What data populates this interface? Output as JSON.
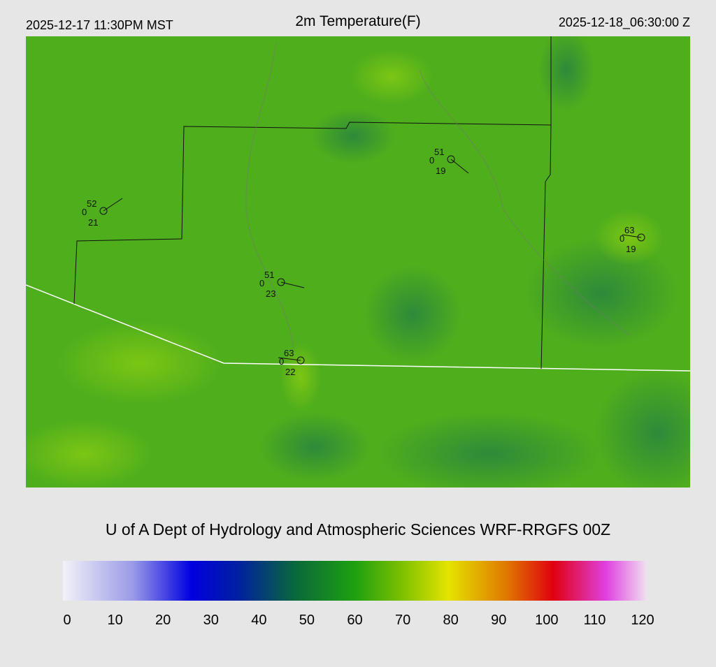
{
  "header": {
    "local_time": "2025-12-17 11:30PM MST",
    "title": "2m Temperature(F)",
    "utc_time": "2025-12-18_06:30:00 Z"
  },
  "stations": [
    {
      "temp": 52,
      "left": 0,
      "dew": 21
    },
    {
      "temp": 51,
      "left": 0,
      "dew": 19
    },
    {
      "temp": 51,
      "left": 0,
      "dew": 23
    },
    {
      "temp": 63,
      "left": 0,
      "dew": 22
    },
    {
      "temp": 63,
      "left": 0,
      "dew": 19
    }
  ],
  "credit": "U of A Dept of Hydrology and Atmospheric Sciences WRF-RRGFS 00Z",
  "colorbar": {
    "range": [
      0,
      120
    ],
    "ticks": [
      0,
      10,
      20,
      30,
      40,
      50,
      60,
      70,
      80,
      90,
      100,
      110,
      120
    ]
  }
}
